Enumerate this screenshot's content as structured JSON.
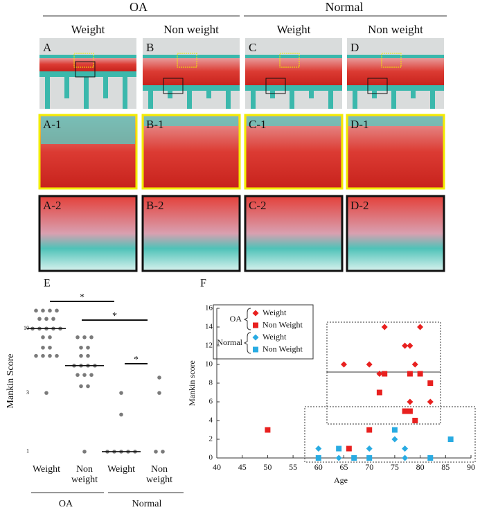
{
  "header": {
    "groups": [
      "OA",
      "Normal"
    ],
    "columns": [
      "Weight",
      "Non weight",
      "Weight",
      "Non weight"
    ]
  },
  "panels": {
    "row1": [
      "A",
      "B",
      "C",
      "D"
    ],
    "row2": [
      "A-1",
      "B-1",
      "C-1",
      "D-1"
    ],
    "row3": [
      "A-2",
      "B-2",
      "C-2",
      "D-2"
    ]
  },
  "chart_data": [
    {
      "type": "strip",
      "label": "E",
      "ylabel": "Mankin Score",
      "yscale": "log",
      "categories": [
        "Weight",
        "Non weight",
        "Weight",
        "Non weight"
      ],
      "category_groups": [
        "OA",
        "Normal"
      ],
      "values": [
        [
          14,
          14,
          14,
          14,
          12,
          12,
          12,
          10,
          10,
          10,
          10,
          10,
          8.5,
          8.5,
          7,
          7,
          6,
          6,
          6,
          6,
          3
        ],
        [
          8.5,
          8.5,
          8.5,
          7,
          7,
          6,
          6,
          5,
          5,
          5,
          5,
          4.2,
          4.2,
          4.2,
          3.4,
          3.4,
          1
        ],
        [
          3,
          2,
          1,
          1,
          1,
          1,
          1
        ],
        [
          4,
          3,
          1,
          1
        ]
      ],
      "medians": [
        10,
        5,
        1,
        null
      ],
      "color": "#7a7a7a",
      "annotations": [
        "*",
        "*",
        "*"
      ],
      "ylim": [
        0.9,
        15
      ],
      "yticks": [
        1,
        3,
        10
      ]
    },
    {
      "type": "scatter",
      "label": "F",
      "xlabel": "Age",
      "ylabel": "Mankin score",
      "legend_groups": [
        "OA",
        "Normal"
      ],
      "series": [
        {
          "name": "Weight",
          "color": "#e8201f",
          "marker": "diamond",
          "x": [
            65,
            70,
            73,
            72,
            77,
            78,
            79,
            80,
            78,
            82
          ],
          "values": [
            10,
            10,
            14,
            9,
            12,
            12,
            10,
            14,
            6,
            6
          ]
        },
        {
          "name": "Non Weight",
          "color": "#e8201f",
          "marker": "square",
          "x": [
            50,
            66,
            70,
            72,
            73,
            77,
            78,
            78,
            79,
            80,
            82
          ],
          "values": [
            3,
            1,
            3,
            7,
            9,
            5,
            5,
            9,
            4,
            9,
            8
          ]
        },
        {
          "name": "Weight",
          "color": "#29abe2",
          "marker": "diamond",
          "x": [
            60,
            64,
            70,
            75,
            77,
            77
          ],
          "values": [
            1,
            0,
            1,
            2,
            1,
            0
          ]
        },
        {
          "name": "Non Weight",
          "color": "#29abe2",
          "marker": "square",
          "x": [
            60,
            64,
            67,
            70,
            75,
            82,
            86
          ],
          "values": [
            0,
            1,
            0,
            0,
            3,
            0,
            2
          ]
        }
      ],
      "xlim": [
        40,
        90
      ],
      "xticks": [
        40,
        45,
        50,
        55,
        60,
        65,
        70,
        75,
        80,
        85,
        90
      ],
      "ylim": [
        0,
        16
      ],
      "yticks": [
        0,
        2,
        4,
        6,
        8,
        10,
        12,
        14,
        16
      ]
    }
  ]
}
